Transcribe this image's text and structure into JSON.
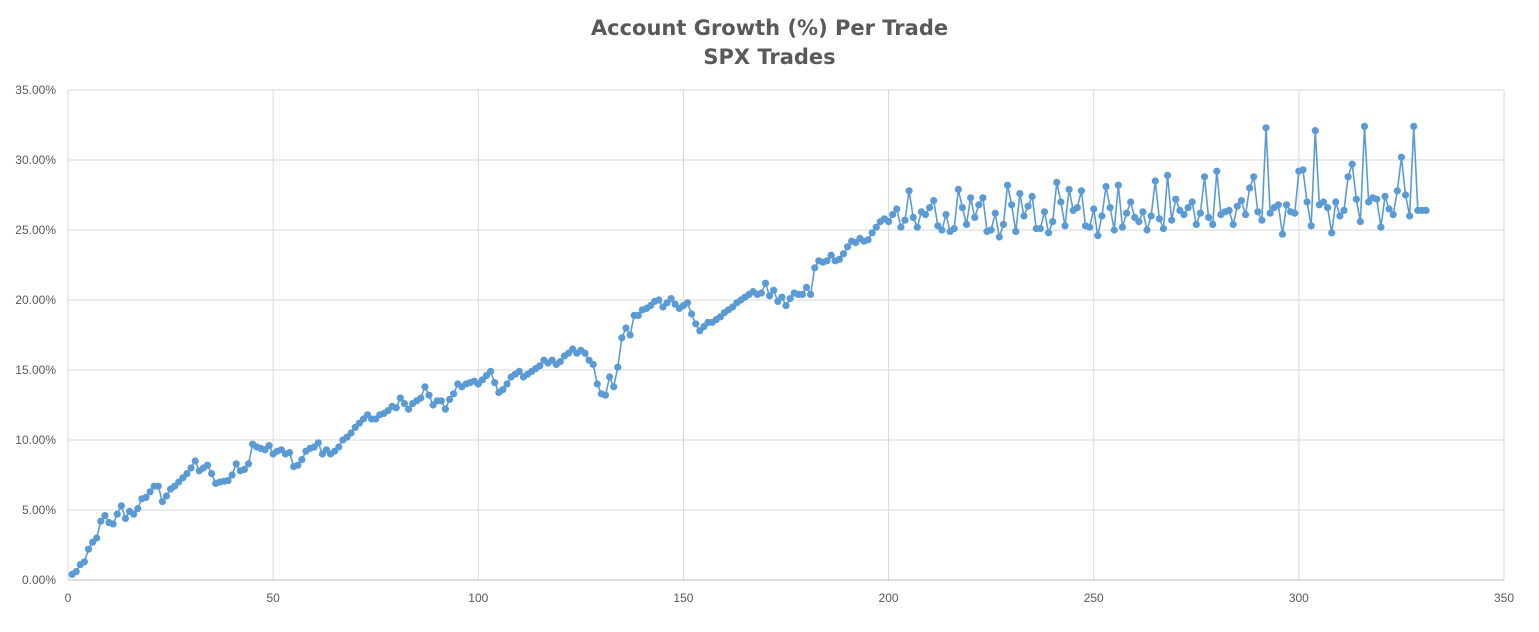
{
  "chart_data": {
    "type": "scatter",
    "title": "Account Growth (%) Per Trade",
    "subtitle": "SPX Trades",
    "xlabel": "",
    "ylabel": "",
    "xlim": [
      0,
      350
    ],
    "ylim": [
      0,
      35
    ],
    "x_ticks": [
      0,
      50,
      100,
      150,
      200,
      250,
      300,
      350
    ],
    "y_ticks": [
      0,
      5,
      10,
      15,
      20,
      25,
      30,
      35
    ],
    "x_tick_labels": [
      "0",
      "50",
      "100",
      "150",
      "200",
      "250",
      "300",
      "350"
    ],
    "y_tick_labels": [
      "0.00%",
      "5.00%",
      "10.00%",
      "15.00%",
      "20.00%",
      "25.00%",
      "30.00%",
      "35.00%"
    ],
    "grid": true,
    "legend": "none",
    "line_with_markers": true,
    "series": [
      {
        "color": "#5B9BD5",
        "x_start": 1,
        "values": [
          0.4,
          0.6,
          1.1,
          1.3,
          2.2,
          2.7,
          3.0,
          4.2,
          4.6,
          4.1,
          4.0,
          4.7,
          5.3,
          4.4,
          4.9,
          4.7,
          5.1,
          5.8,
          5.9,
          6.3,
          6.7,
          6.7,
          5.6,
          6.0,
          6.5,
          6.7,
          7.0,
          7.3,
          7.6,
          8.0,
          8.5,
          7.8,
          8.0,
          8.2,
          7.6,
          6.9,
          7.0,
          7.05,
          7.1,
          7.5,
          8.3,
          7.8,
          7.9,
          8.3,
          9.7,
          9.5,
          9.4,
          9.3,
          9.6,
          9.0,
          9.2,
          9.3,
          9.0,
          9.1,
          8.1,
          8.2,
          8.6,
          9.2,
          9.4,
          9.5,
          9.8,
          9.0,
          9.3,
          9.0,
          9.2,
          9.5,
          10.0,
          10.2,
          10.5,
          10.9,
          11.2,
          11.5,
          11.8,
          11.5,
          11.5,
          11.8,
          11.9,
          12.1,
          12.4,
          12.3,
          13.0,
          12.6,
          12.2,
          12.6,
          12.8,
          13.0,
          13.8,
          13.2,
          12.5,
          12.8,
          12.8,
          12.2,
          12.9,
          13.3,
          14.0,
          13.8,
          14.0,
          14.1,
          14.2,
          14.0,
          14.3,
          14.6,
          14.9,
          14.1,
          13.4,
          13.6,
          14.0,
          14.5,
          14.7,
          14.9,
          14.5,
          14.7,
          14.9,
          15.1,
          15.3,
          15.7,
          15.5,
          15.7,
          15.4,
          15.6,
          16.0,
          16.2,
          16.5,
          16.2,
          16.4,
          16.2,
          15.7,
          15.4,
          14.0,
          13.3,
          13.2,
          14.5,
          13.8,
          15.2,
          17.3,
          18.0,
          17.5,
          18.9,
          18.9,
          19.3,
          19.4,
          19.6,
          19.9,
          20.0,
          19.5,
          19.8,
          20.1,
          19.7,
          19.4,
          19.6,
          19.8,
          19.0,
          18.3,
          17.8,
          18.1,
          18.4,
          18.4,
          18.6,
          18.8,
          19.1,
          19.3,
          19.5,
          19.8,
          20.0,
          20.2,
          20.4,
          20.6,
          20.4,
          20.5,
          21.2,
          20.3,
          20.7,
          19.9,
          20.2,
          19.6,
          20.1,
          20.5,
          20.4,
          20.4,
          20.9,
          20.4,
          22.3,
          22.8,
          22.7,
          22.8,
          23.2,
          22.8,
          22.9,
          23.3,
          23.8,
          24.2,
          24.1,
          24.4,
          24.2,
          24.3,
          24.8,
          25.2,
          25.6,
          25.8,
          25.6,
          26.1,
          26.5,
          25.2,
          25.7,
          27.8,
          25.9,
          25.2,
          26.3,
          26.1,
          26.6,
          27.1,
          25.3,
          25.0,
          26.1,
          24.9,
          25.1,
          27.9,
          26.6,
          25.4,
          27.3,
          25.9,
          26.8,
          27.3,
          24.9,
          25.0,
          26.2,
          24.5,
          25.4,
          28.2,
          26.8,
          24.9,
          27.6,
          26.0,
          26.7,
          27.4,
          25.1,
          25.1,
          26.3,
          24.8,
          25.6,
          28.4,
          27.0,
          25.3,
          27.9,
          26.4,
          26.6,
          27.8,
          25.3,
          25.2,
          26.5,
          24.6,
          26.0,
          28.1,
          26.6,
          25.0,
          28.2,
          25.2,
          26.2,
          27.0,
          25.9,
          25.6,
          26.3,
          25.0,
          26.0,
          28.5,
          25.8,
          25.1,
          28.9,
          25.7,
          27.2,
          26.4,
          26.1,
          26.6,
          27.0,
          25.4,
          26.2,
          28.8,
          25.9,
          25.4,
          29.2,
          26.1,
          26.3,
          26.4,
          25.4,
          26.7,
          27.1,
          26.1,
          28.0,
          28.8,
          26.3,
          25.7,
          32.3,
          26.2,
          26.6,
          26.8,
          24.7,
          26.8,
          26.3,
          26.2,
          29.2,
          29.3,
          27.0,
          25.3,
          32.1,
          26.8,
          27.0,
          26.6,
          24.8,
          27.0,
          26.0,
          26.4,
          28.8,
          29.7,
          27.2,
          25.6,
          32.4,
          27.0,
          27.3,
          27.2,
          25.2,
          27.4,
          26.5,
          26.1,
          27.8,
          30.2,
          27.5,
          26.0,
          32.4,
          26.4,
          26.4,
          26.4
        ]
      }
    ]
  }
}
